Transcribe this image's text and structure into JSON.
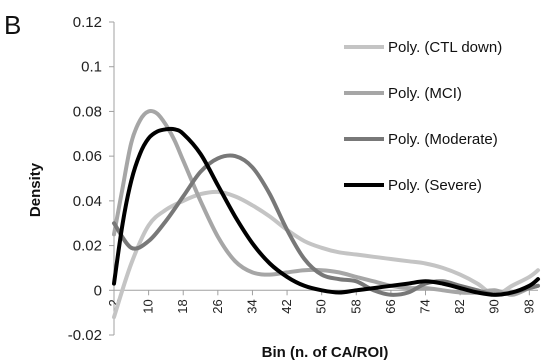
{
  "chart_data": {
    "type": "line",
    "panel_label": "B",
    "xlabel": "Bin (n. of CA/ROI)",
    "ylabel": "Density",
    "ylim": [
      -0.02,
      0.12
    ],
    "yticks": [
      -0.02,
      0,
      0.02,
      0.04,
      0.06,
      0.08,
      0.1,
      0.12
    ],
    "ytick_labels": [
      "-0.02",
      "0",
      "0.02",
      "0.04",
      "0.06",
      "0.08",
      "0.1",
      "0.12"
    ],
    "xlim": [
      2,
      100
    ],
    "xticks": [
      2,
      10,
      18,
      26,
      34,
      42,
      50,
      58,
      66,
      74,
      82,
      90,
      98
    ],
    "xtick_labels": [
      "2",
      "10",
      "18",
      "26",
      "34",
      "42",
      "50",
      "58",
      "66",
      "74",
      "82",
      "90",
      "98"
    ],
    "grid": false,
    "legend_position": "top-right",
    "series": [
      {
        "name": "Poly. (CTL down)",
        "color": "#c4c4c4",
        "x": [
          2,
          6,
          10,
          14,
          18,
          22,
          26,
          30,
          34,
          38,
          42,
          46,
          50,
          54,
          58,
          62,
          66,
          70,
          74,
          78,
          82,
          86,
          90,
          94,
          98,
          100
        ],
        "y": [
          -0.012,
          0.012,
          0.029,
          0.036,
          0.04,
          0.043,
          0.044,
          0.042,
          0.038,
          0.033,
          0.027,
          0.022,
          0.019,
          0.017,
          0.016,
          0.015,
          0.014,
          0.013,
          0.012,
          0.01,
          0.007,
          0.003,
          -0.002,
          0.002,
          0.006,
          0.009
        ]
      },
      {
        "name": "Poly. (MCI)",
        "color": "#a6a6a6",
        "x": [
          2,
          4,
          6,
          8,
          10,
          12,
          14,
          16,
          18,
          22,
          26,
          30,
          34,
          38,
          42,
          46,
          50,
          54,
          58,
          62,
          66,
          70,
          74,
          78,
          82,
          86,
          90,
          94,
          98,
          100
        ],
        "y": [
          0.025,
          0.046,
          0.066,
          0.076,
          0.08,
          0.079,
          0.074,
          0.067,
          0.058,
          0.04,
          0.024,
          0.013,
          0.008,
          0.007,
          0.008,
          0.009,
          0.009,
          0.008,
          0.006,
          0.004,
          0.002,
          0.001,
          0.001,
          0.0,
          -0.001,
          -0.001,
          0.0,
          -0.002,
          0.001,
          0.002
        ]
      },
      {
        "name": "Poly. (Moderate)",
        "color": "#787878",
        "x": [
          2,
          6,
          10,
          14,
          18,
          22,
          26,
          30,
          34,
          38,
          42,
          46,
          50,
          54,
          58,
          62,
          66,
          70,
          74,
          78,
          82,
          86,
          90,
          94,
          98,
          100
        ],
        "y": [
          0.03,
          0.019,
          0.022,
          0.031,
          0.042,
          0.053,
          0.059,
          0.06,
          0.055,
          0.043,
          0.027,
          0.014,
          0.007,
          0.005,
          0.004,
          0.0,
          -0.002,
          -0.001,
          0.003,
          0.004,
          0.002,
          0.0,
          -0.002,
          -0.001,
          0.001,
          0.002
        ]
      },
      {
        "name": "Poly. (Severe)",
        "color": "#000000",
        "x": [
          2,
          4,
          6,
          8,
          10,
          12,
          14,
          16,
          18,
          22,
          26,
          30,
          34,
          38,
          42,
          46,
          50,
          54,
          58,
          62,
          66,
          70,
          74,
          78,
          82,
          86,
          90,
          94,
          98,
          100
        ],
        "y": [
          0.003,
          0.03,
          0.049,
          0.061,
          0.068,
          0.071,
          0.072,
          0.072,
          0.07,
          0.061,
          0.047,
          0.033,
          0.021,
          0.012,
          0.006,
          0.002,
          0.0,
          -0.001,
          0.0,
          0.001,
          0.002,
          0.003,
          0.004,
          0.003,
          0.001,
          -0.001,
          -0.002,
          -0.001,
          0.002,
          0.005
        ]
      }
    ]
  }
}
